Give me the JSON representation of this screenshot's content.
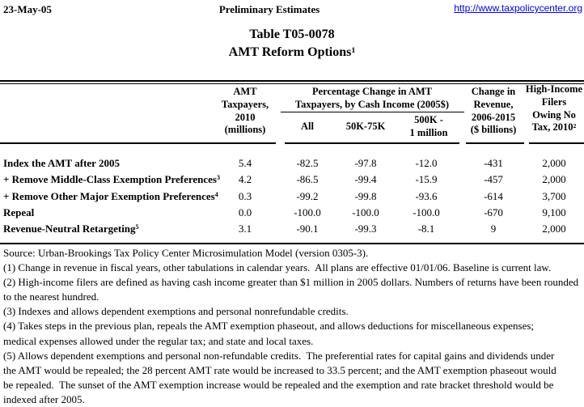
{
  "page": {
    "date": "23-May-05",
    "center_header": "Preliminary Estimates",
    "link": "http://www.taxpolicycenter.org",
    "title_line1": "Table T05-0078",
    "title_line2": "AMT Reform Options",
    "title_sup": "1"
  },
  "colors": {
    "background": "#ffffff",
    "text": "#000000",
    "link_blue": "#0000e8"
  },
  "table": {
    "header": {
      "amt_l1": "AMT",
      "amt_l2": "Taxpayers,",
      "amt_l3": "2010",
      "amt_l4": "(millions)",
      "pct_l1": "Percentage Change in AMT",
      "pct_l2": "Taxpayers, by Cash Income (2005$)",
      "sub_all": "All",
      "sub_50k": "50K-75K",
      "sub_500k_l1": "500K -",
      "sub_500k_l2": "1 million",
      "rev_l1": "Change in",
      "rev_l2": "Revenue,",
      "rev_l3": "2006-2015",
      "rev_l4": "($ billions)",
      "hi_l1": "High-Income",
      "hi_l2": "Filers",
      "hi_l3": "Owing No",
      "hi_l4": "Tax, 2010",
      "hi_sup": "2"
    },
    "rows": [
      {
        "label": "Index the AMT after 2005",
        "sup": "",
        "values": [
          "5.4",
          "-82.5",
          "-97.8",
          "-12.0",
          "-431",
          "2,000"
        ]
      },
      {
        "label": "+ Remove Middle-Class Exemption Preferences",
        "sup": "3",
        "values": [
          "4.2",
          "-86.5",
          "-99.4",
          "-15.9",
          "-457",
          "2,000"
        ]
      },
      {
        "label": "+ Remove Other Major Exemption Preferences",
        "sup": "4",
        "values": [
          "0.3",
          "-99.2",
          "-99.8",
          "-93.6",
          "-614",
          "3,700"
        ]
      },
      {
        "label": "Repeal",
        "sup": "",
        "values": [
          "0.0",
          "-100.0",
          "-100.0",
          "-100.0",
          "-670",
          "9,100"
        ]
      },
      {
        "label": "Revenue-Neutral Retargeting",
        "sup": "5",
        "values": [
          "3.1",
          "-90.1",
          "-99.3",
          "-8.1",
          "9",
          "2,000"
        ]
      }
    ]
  },
  "footnotes": {
    "lines": [
      "Source: Urban-Brookings Tax Policy Center Microsimulation Model (version 0305-3).",
      "(1) Change in revenue in fiscal years, other tabulations in calendar years.  All plans are effective 01/01/06. Baseline is current law.",
      "(2) High-income filers are defined as having cash income greater than $1 million in 2005 dollars. Numbers of returns have been rounded",
      "to the nearest hundred.",
      "(3) Indexes and allows dependent exemptions and personal nonrefundable credits.",
      "(4) Takes steps in the previous plan, repeals the AMT exemption phaseout, and allows deductions for miscellaneous expenses;",
      "medical expenses allowed under the regular tax; and state and local taxes.",
      "(5) Allows dependent exemptions and personal non-refundable credits.  The preferential rates for capital gains and dividends under",
      "the AMT would be repealed; the 28 percent AMT rate would be increased to 33.5 percent; and the AMT exemption phaseout would",
      "be repealed.  The sunset of the AMT exemption increase would be repealed and the exemption and rate bracket threshold would be",
      "indexed after 2005."
    ]
  }
}
